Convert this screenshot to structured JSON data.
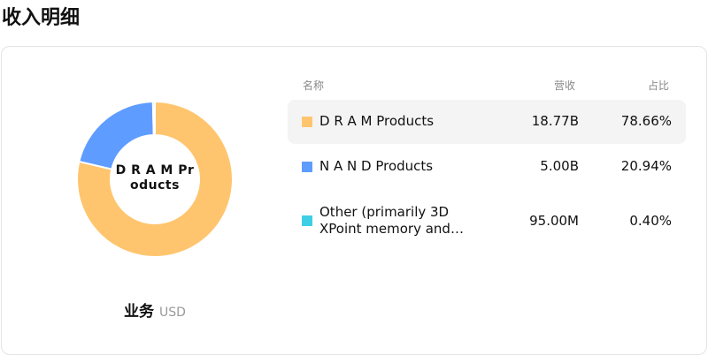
{
  "title": "收入明细",
  "center_label": "D R A M Pr oducts",
  "center_line1": "D R A M Pr",
  "center_line2": "oducts",
  "footer": {
    "label": "业务",
    "currency": "USD"
  },
  "table": {
    "headers": {
      "name": "名称",
      "revenue": "营收",
      "share": "占比"
    },
    "rows": [
      {
        "name": "D R A M Products",
        "revenue": "18.77B",
        "share": "78.66%",
        "color": "#FFC56E"
      },
      {
        "name": "N A N D Products",
        "revenue": "5.00B",
        "share": "20.94%",
        "color": "#5F9CFF"
      },
      {
        "name": "Other (primarily 3D XPoint memory and…",
        "revenue": "95.00M",
        "share": "0.40%",
        "color": "#3ECFE5"
      }
    ]
  },
  "chart_data": {
    "type": "pie",
    "donut": true,
    "categories": [
      "D R A M Products",
      "N A N D Products",
      "Other (primarily 3D XPoint memory and…"
    ],
    "values": [
      78.66,
      20.94,
      0.4
    ],
    "colors": [
      "#FFC56E",
      "#5F9CFF",
      "#3ECFE5"
    ]
  }
}
